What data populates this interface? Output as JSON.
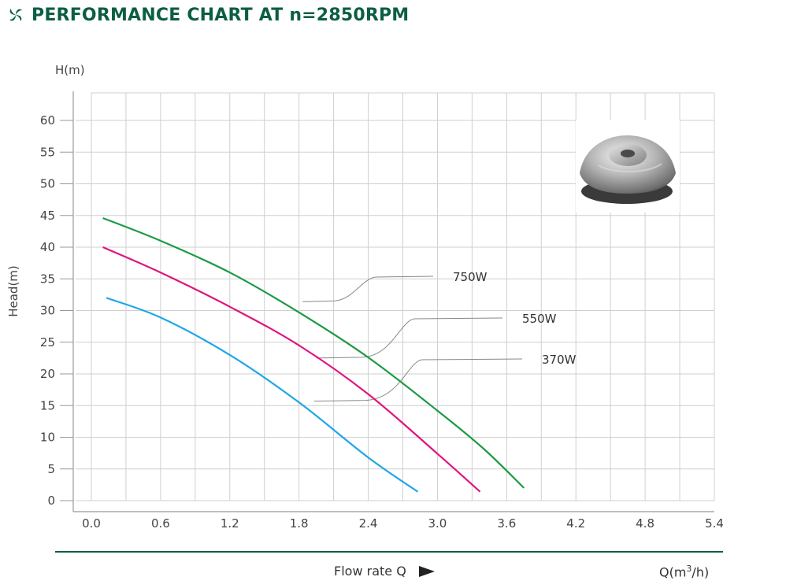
{
  "header": {
    "title": "PERFORMANCE CHART AT n=2850RPM"
  },
  "colors": {
    "brand": "#0b5e45",
    "grid": "#cfcfcf",
    "s370": "#1ea7e8",
    "s550": "#e0147f",
    "s750": "#1c9a44"
  },
  "icons": {
    "logo": "pinwheel-logo-icon",
    "arrow": "arrow-right-icon",
    "impeller": "impeller-photo"
  },
  "chart_data": {
    "type": "line",
    "title": "PERFORMANCE CHART AT n=2850RPM",
    "ylabel": "Head(m)",
    "yunit": "H(m)",
    "xlabel": "Flow rate Q",
    "xunit_prefix": "Q(m",
    "xunit_exp": "3",
    "xunit_suffix": "/h)",
    "xlim": [
      0,
      5.4
    ],
    "ylim": [
      0,
      60
    ],
    "xticks": [
      "0.0",
      "0.6",
      "1.2",
      "1.8",
      "2.4",
      "3.0",
      "3.6",
      "4.2",
      "4.8",
      "5.4"
    ],
    "xtick_values": [
      0,
      0.6,
      1.2,
      1.8,
      2.4,
      3.0,
      3.6,
      4.2,
      4.8,
      5.4
    ],
    "yticks": [
      "0",
      "5",
      "10",
      "15",
      "20",
      "25",
      "30",
      "35",
      "40",
      "45",
      "50",
      "55",
      "60"
    ],
    "ytick_values": [
      0,
      5,
      10,
      15,
      20,
      25,
      30,
      35,
      40,
      45,
      50,
      55,
      60
    ],
    "grid": true,
    "series": [
      {
        "name": "750W",
        "color": "#1c9a44",
        "x": [
          0.1,
          0.6,
          1.2,
          1.8,
          2.4,
          3.0,
          3.4,
          3.75
        ],
        "y": [
          44.6,
          41.0,
          36.0,
          29.7,
          22.6,
          14.2,
          8.2,
          2.0
        ],
        "label_anchor": [
          1.83,
          31.4
        ]
      },
      {
        "name": "550W",
        "color": "#e0147f",
        "x": [
          0.1,
          0.6,
          1.2,
          1.8,
          2.4,
          3.0,
          3.37
        ],
        "y": [
          40.0,
          36.0,
          30.6,
          24.5,
          16.8,
          7.4,
          1.4
        ],
        "label_anchor": [
          1.95,
          22.5
        ]
      },
      {
        "name": "370W",
        "color": "#1ea7e8",
        "x": [
          0.13,
          0.6,
          1.2,
          1.8,
          2.4,
          2.83
        ],
        "y": [
          32.0,
          28.9,
          23.0,
          15.5,
          6.8,
          1.4
        ],
        "label_anchor": [
          1.93,
          15.7
        ]
      }
    ]
  }
}
